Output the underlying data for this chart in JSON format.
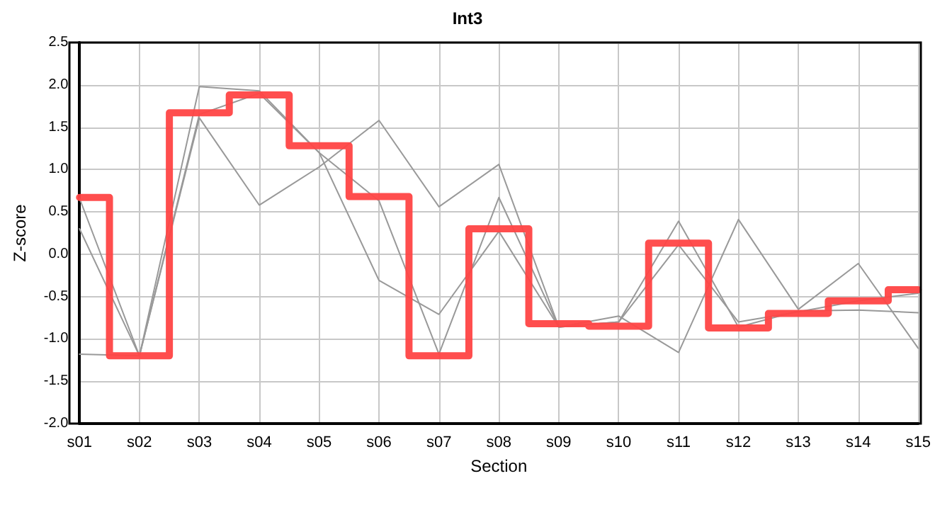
{
  "chart_data": {
    "type": "line",
    "title": "Int3",
    "xlabel": "Section",
    "ylabel": "Z-score",
    "categories": [
      "s01",
      "s02",
      "s03",
      "s04",
      "s05",
      "s06",
      "s07",
      "s08",
      "s09",
      "s10",
      "s11",
      "s12",
      "s13",
      "s14",
      "s15"
    ],
    "series": [
      {
        "color": "#999999",
        "values": [
          -1.18,
          -1.2,
          1.98,
          1.93,
          1.2,
          0.63,
          -1.18,
          0.67,
          -0.86,
          -0.73,
          -1.16,
          0.41,
          -0.65,
          -0.11,
          -1.11
        ]
      },
      {
        "color": "#999999",
        "values": [
          0.66,
          -1.2,
          1.61,
          0.58,
          1.03,
          1.58,
          0.56,
          1.06,
          -0.86,
          -0.8,
          0.39,
          -0.86,
          -0.67,
          -0.66,
          -0.69
        ]
      },
      {
        "color": "#999999",
        "values": [
          0.3,
          -1.2,
          1.65,
          1.9,
          1.2,
          -0.31,
          -0.71,
          0.27,
          -0.86,
          -0.8,
          0.11,
          -0.8,
          -0.68,
          -0.55,
          -0.46
        ]
      },
      {
        "type": "step",
        "color": "#ff4444",
        "values": [
          0.67,
          -1.2,
          1.67,
          1.88,
          1.28,
          0.68,
          -1.2,
          0.3,
          -0.82,
          -0.85,
          0.13,
          -0.87,
          -0.7,
          -0.55,
          -0.42
        ]
      }
    ],
    "ylim": [
      -2.0,
      2.5
    ],
    "yticks": [
      {
        "value": -2,
        "label": "-2.0"
      },
      {
        "value": -1.5,
        "label": "-1.5"
      },
      {
        "value": -1,
        "label": "-1.0"
      },
      {
        "value": -0.5,
        "label": "-0.5"
      },
      {
        "value": 0,
        "label": "0.0"
      },
      {
        "value": 0.5,
        "label": "0.5"
      },
      {
        "value": 1,
        "label": "1.0"
      },
      {
        "value": 1.5,
        "label": "1.5"
      },
      {
        "value": 2,
        "label": "2.0"
      },
      {
        "value": 2.5,
        "label": "2.5"
      }
    ],
    "grid": true,
    "marker": "none",
    "line_style": "solid"
  }
}
